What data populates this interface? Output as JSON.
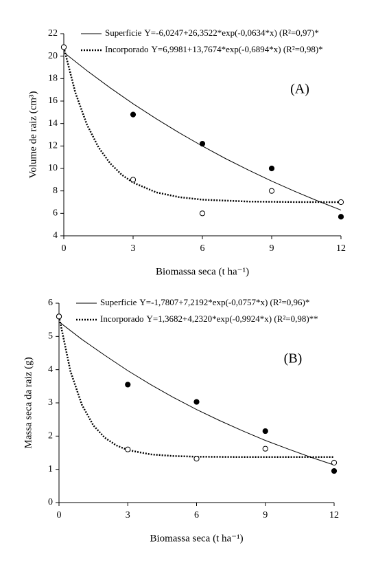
{
  "chart_data": [
    {
      "type": "scatter",
      "label": "(A)",
      "x_label": "Biomassa seca (t ha⁻¹)",
      "y_label": "Volume de raiz (cm³)",
      "xlim": [
        0,
        12
      ],
      "xticks": [
        0,
        3,
        6,
        9,
        12
      ],
      "ylim": [
        4,
        22
      ],
      "yticks": [
        4,
        6,
        8,
        10,
        12,
        14,
        16,
        18,
        20,
        22
      ],
      "series": [
        {
          "name": "Superficie",
          "marker": "filled",
          "dash": "solid",
          "color": "#000",
          "x": [
            0,
            3,
            6,
            9,
            12
          ],
          "values": [
            20.8,
            14.8,
            12.2,
            10.0,
            5.7
          ],
          "fit": {
            "equation": "Y=-6,0247+26,3522*exp(-0,0634*x)  (R²=0,97)*",
            "x": [
              0,
              1,
              2,
              3,
              4,
              5,
              6,
              7,
              8,
              9,
              10,
              11,
              12
            ],
            "values": [
              20.33,
              18.71,
              17.19,
              15.76,
              14.43,
              13.17,
              11.99,
              10.88,
              9.85,
              8.87,
              7.96,
              7.1,
              6.29
            ]
          }
        },
        {
          "name": "Incorporado",
          "marker": "open",
          "dash": "dotted",
          "color": "#000",
          "x": [
            0,
            3,
            6,
            9,
            12
          ],
          "values": [
            20.8,
            9.0,
            6.0,
            8.0,
            7.0
          ],
          "fit": {
            "equation": "Y=6,9981+13,7674*exp(-0,6894*x)  (R²=0,98)*",
            "x": [
              0,
              0.5,
              1,
              1.5,
              2,
              2.5,
              3,
              4,
              5,
              6,
              8,
              10,
              12
            ],
            "values": [
              20.77,
              16.75,
              13.91,
              11.89,
              10.47,
              9.45,
              8.74,
              7.87,
              7.44,
              7.22,
              7.05,
              7.01,
              7.0
            ]
          }
        }
      ]
    },
    {
      "type": "scatter",
      "label": "(B)",
      "x_label": "Biomassa seca (t ha⁻¹)",
      "y_label": "Massa seca da raiz (g)",
      "xlim": [
        0,
        12
      ],
      "xticks": [
        0,
        3,
        6,
        9,
        12
      ],
      "ylim": [
        0,
        6
      ],
      "yticks": [
        0,
        1,
        2,
        3,
        4,
        5,
        6
      ],
      "series": [
        {
          "name": "Superficie",
          "marker": "filled",
          "dash": "solid",
          "color": "#000",
          "x": [
            0,
            3,
            6,
            9,
            12
          ],
          "values": [
            5.6,
            3.55,
            3.03,
            2.15,
            0.95
          ],
          "fit": {
            "equation": "Y=-1,7807+7,2192*exp(-0,0757*x) (R²=0,96)*",
            "x": [
              0,
              1,
              2,
              3,
              4,
              5,
              6,
              7,
              8,
              9,
              10,
              11,
              12
            ],
            "values": [
              5.44,
              4.91,
              4.43,
              3.97,
              3.55,
              3.16,
              2.8,
              2.47,
              2.16,
              1.87,
              1.61,
              1.36,
              1.13
            ]
          }
        },
        {
          "name": "Incorporado",
          "marker": "open",
          "dash": "dotted",
          "color": "#000",
          "x": [
            0,
            3,
            6,
            9,
            12
          ],
          "values": [
            5.6,
            1.6,
            1.32,
            1.62,
            1.2
          ],
          "fit": {
            "equation": "Y=1,3682+4,2320*exp(-0,9924*x)  (R²=0,98)**",
            "x": [
              0,
              0.5,
              1,
              1.5,
              2,
              2.5,
              3,
              4,
              5,
              6,
              8,
              10,
              12
            ],
            "values": [
              5.6,
              3.95,
              2.94,
              2.32,
              1.95,
              1.72,
              1.58,
              1.45,
              1.4,
              1.38,
              1.37,
              1.37,
              1.37
            ]
          }
        }
      ]
    }
  ]
}
